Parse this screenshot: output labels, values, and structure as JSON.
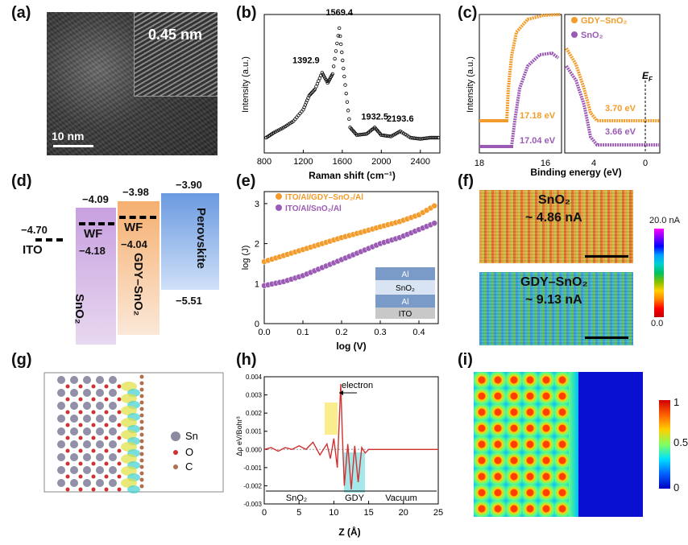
{
  "panels": {
    "a": "(a)",
    "b": "(b)",
    "c": "(c)",
    "d": "(d)",
    "e": "(e)",
    "f": "(f)",
    "g": "(g)",
    "h": "(h)",
    "i": "(i)"
  },
  "panel_a": {
    "lattice": "0.45 nm",
    "scale": "10 nm"
  },
  "panel_b": {
    "chart_data": {
      "type": "line",
      "xlabel": "Raman shift (cm⁻¹)",
      "ylabel": "Intensity (a.u.)",
      "xlim": [
        800,
        2600
      ],
      "xticks": [
        800,
        1200,
        1600,
        2000,
        2400
      ],
      "peaks": [
        {
          "x": 1392.9,
          "label": "1392.9"
        },
        {
          "x": 1569.4,
          "label": "1569.4"
        },
        {
          "x": 1932.5,
          "label": "1932.5"
        },
        {
          "x": 2193.6,
          "label": "2193.6"
        }
      ],
      "series": [
        {
          "name": "Raman",
          "x": [
            820,
            900,
            1000,
            1100,
            1200,
            1260,
            1320,
            1392.9,
            1450,
            1500,
            1569.4,
            1620,
            1680,
            1750,
            1850,
            1932.5,
            2000,
            2100,
            2193.6,
            2300,
            2400,
            2500,
            2600
          ],
          "y": [
            0.12,
            0.16,
            0.2,
            0.25,
            0.34,
            0.45,
            0.5,
            0.63,
            0.55,
            0.62,
            0.98,
            0.6,
            0.2,
            0.14,
            0.15,
            0.2,
            0.14,
            0.13,
            0.17,
            0.12,
            0.11,
            0.12,
            0.12
          ]
        }
      ]
    }
  },
  "panel_c": {
    "chart_data": {
      "type": "scatter",
      "xlabel": "Binding energy (eV)",
      "ylabel": "Intensity (a.u.)",
      "xticks_left": [
        18,
        16
      ],
      "xticks_right": [
        4,
        0
      ],
      "legend": [
        {
          "name": "GDY–SnO₂",
          "color": "#f39c2b"
        },
        {
          "name": "SnO₂",
          "color": "#9b5bb5"
        }
      ],
      "annotations": [
        "17.18 eV",
        "17.04 eV",
        "3.70 eV",
        "3.66 eV"
      ],
      "ef_label": "E",
      "ef_sub": "F"
    }
  },
  "panel_d": {
    "ito": {
      "value": "−4.70",
      "label": "ITO"
    },
    "sno2": {
      "top": "−4.09",
      "wf": "WF",
      "wf_value": "−4.18",
      "label": "SnO₂"
    },
    "gdy": {
      "top": "−3.98",
      "wf": "WF",
      "wf_value": "−4.04",
      "label": "GDY–SnO₂"
    },
    "perovskite": {
      "top": "−3.90",
      "bottom": "−5.51",
      "label": "Perovskite"
    }
  },
  "panel_e": {
    "chart_data": {
      "type": "scatter",
      "xlabel": "log (V)",
      "ylabel": "log (J)",
      "xlim": [
        0.0,
        0.45
      ],
      "ylim": [
        0,
        3.3
      ],
      "xticks": [
        "0.0",
        "0.1",
        "0.2",
        "0.3",
        "0.4"
      ],
      "yticks": [
        "0",
        "1",
        "2",
        "3"
      ],
      "series": [
        {
          "name": "ITO/Al/GDY–SnO₂/Al",
          "color": "#f39c2b",
          "x": [
            0,
            0.05,
            0.1,
            0.15,
            0.2,
            0.25,
            0.3,
            0.35,
            0.4,
            0.45
          ],
          "y": [
            1.55,
            1.7,
            1.85,
            2.0,
            2.15,
            2.28,
            2.42,
            2.55,
            2.72,
            3.0
          ]
        },
        {
          "name": "ITO/Al/SnO₂/Al",
          "color": "#9b5bb5",
          "x": [
            0,
            0.05,
            0.1,
            0.15,
            0.2,
            0.25,
            0.3,
            0.35,
            0.4,
            0.45
          ],
          "y": [
            0.95,
            1.05,
            1.2,
            1.4,
            1.6,
            1.8,
            2.0,
            2.15,
            2.35,
            2.55
          ]
        }
      ],
      "stack": [
        "Al",
        "SnO₂",
        "Al",
        "ITO"
      ]
    }
  },
  "panel_f": {
    "map1_label": "SnO₂",
    "map1_current": "~ 4.86 nA",
    "map2_label": "GDY–SnO₂",
    "map2_current": "~ 9.13 nA",
    "scale_max": "20.0 nA",
    "scale_min": "0.0"
  },
  "panel_g": {
    "legend": [
      {
        "label": "Sn",
        "color": "#8a8aa0"
      },
      {
        "label": "O",
        "color": "#d03030"
      },
      {
        "label": "C",
        "color": "#b07050"
      }
    ]
  },
  "panel_h": {
    "chart_data": {
      "type": "line",
      "xlabel": "Z (Å)",
      "ylabel": "Δρ eV/Bohr³",
      "xlim": [
        0,
        25
      ],
      "ylim": [
        -0.003,
        0.004
      ],
      "xticks": [
        "0",
        "5",
        "10",
        "15",
        "20",
        "25"
      ],
      "yticks": [
        "0.004",
        "0.003",
        "0.002",
        "0.001",
        "0.000",
        "-0.001",
        "-0.002",
        "-0.003"
      ],
      "regions": [
        "SnO₂",
        "GDY",
        "Vacuum"
      ],
      "arrow_label": "electron",
      "series": [
        {
          "name": "density",
          "x": [
            0,
            1,
            2,
            3,
            4,
            5,
            6,
            7,
            8,
            9,
            9.5,
            10,
            10.5,
            11,
            11.2,
            11.5,
            12,
            12.5,
            13,
            13.5,
            14,
            14.5,
            15,
            20,
            25
          ],
          "y": [
            0,
            0.0001,
            -0.0001,
            0.0001,
            0,
            0.0002,
            0,
            0.0004,
            -0.0003,
            0.0003,
            -0.0005,
            0.0006,
            -0.001,
            0.0036,
            0.001,
            -0.002,
            0.0003,
            -0.0022,
            0.0002,
            -0.0018,
            0.0001,
            -0.0002,
            0,
            0,
            0
          ]
        }
      ]
    }
  },
  "panel_i": {
    "scale_max": "1",
    "scale_mid": "0.5",
    "scale_min": "0"
  }
}
